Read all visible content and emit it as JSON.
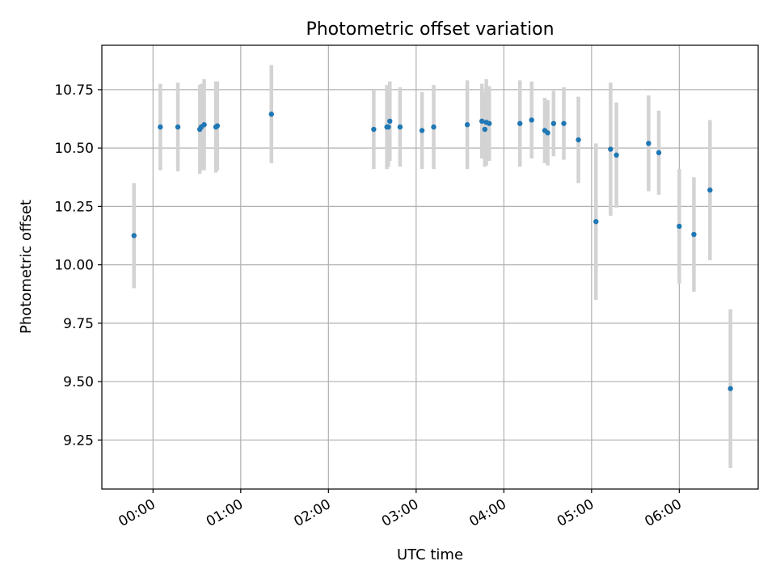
{
  "chart_data": {
    "type": "scatter",
    "title": "Photometric offset variation",
    "xlabel": "UTC time",
    "ylabel": "Photometric offset",
    "x_ticks": [
      "00:00",
      "01:00",
      "02:00",
      "03:00",
      "04:00",
      "05:00",
      "06:00"
    ],
    "y_ticks": [
      "9.25",
      "9.50",
      "9.75",
      "10.00",
      "10.25",
      "10.50",
      "10.75"
    ],
    "xlim": [
      "-00:35",
      "06:54"
    ],
    "ylim": [
      9.04,
      10.94
    ],
    "grid": true,
    "errorbar_color": "#d3d3d3",
    "point_color": "#1f77b4",
    "points": [
      {
        "x": "-00:13",
        "y": 10.125,
        "err": 0.225
      },
      {
        "x": "00:05",
        "y": 10.59,
        "err": 0.185
      },
      {
        "x": "00:17",
        "y": 10.59,
        "err": 0.19
      },
      {
        "x": "00:32",
        "y": 10.58,
        "err": 0.19
      },
      {
        "x": "00:33",
        "y": 10.59,
        "err": 0.185
      },
      {
        "x": "00:35",
        "y": 10.6,
        "err": 0.195
      },
      {
        "x": "00:43",
        "y": 10.59,
        "err": 0.195
      },
      {
        "x": "00:44",
        "y": 10.595,
        "err": 0.19
      },
      {
        "x": "01:21",
        "y": 10.645,
        "err": 0.21
      },
      {
        "x": "02:31",
        "y": 10.58,
        "err": 0.17
      },
      {
        "x": "02:40",
        "y": 10.59,
        "err": 0.18
      },
      {
        "x": "02:41",
        "y": 10.59,
        "err": 0.17
      },
      {
        "x": "02:42",
        "y": 10.615,
        "err": 0.17
      },
      {
        "x": "02:49",
        "y": 10.59,
        "err": 0.17
      },
      {
        "x": "03:04",
        "y": 10.575,
        "err": 0.165
      },
      {
        "x": "03:12",
        "y": 10.59,
        "err": 0.18
      },
      {
        "x": "03:35",
        "y": 10.6,
        "err": 0.19
      },
      {
        "x": "03:45",
        "y": 10.615,
        "err": 0.16
      },
      {
        "x": "03:47",
        "y": 10.58,
        "err": 0.16
      },
      {
        "x": "03:48",
        "y": 10.61,
        "err": 0.185
      },
      {
        "x": "03:50",
        "y": 10.605,
        "err": 0.16
      },
      {
        "x": "04:11",
        "y": 10.605,
        "err": 0.185
      },
      {
        "x": "04:19",
        "y": 10.62,
        "err": 0.165
      },
      {
        "x": "04:28",
        "y": 10.575,
        "err": 0.14
      },
      {
        "x": "04:30",
        "y": 10.565,
        "err": 0.14
      },
      {
        "x": "04:34",
        "y": 10.605,
        "err": 0.14
      },
      {
        "x": "04:41",
        "y": 10.605,
        "err": 0.155
      },
      {
        "x": "04:51",
        "y": 10.535,
        "err": 0.185
      },
      {
        "x": "05:03",
        "y": 10.185,
        "err": 0.335
      },
      {
        "x": "05:13",
        "y": 10.495,
        "err": 0.285
      },
      {
        "x": "05:17",
        "y": 10.47,
        "err": 0.225
      },
      {
        "x": "05:39",
        "y": 10.52,
        "err": 0.205
      },
      {
        "x": "05:46",
        "y": 10.48,
        "err": 0.18
      },
      {
        "x": "06:00",
        "y": 10.165,
        "err": 0.245
      },
      {
        "x": "06:10",
        "y": 10.13,
        "err": 0.245
      },
      {
        "x": "06:21",
        "y": 10.32,
        "err": 0.3
      },
      {
        "x": "06:35",
        "y": 9.47,
        "err": 0.34
      }
    ]
  }
}
